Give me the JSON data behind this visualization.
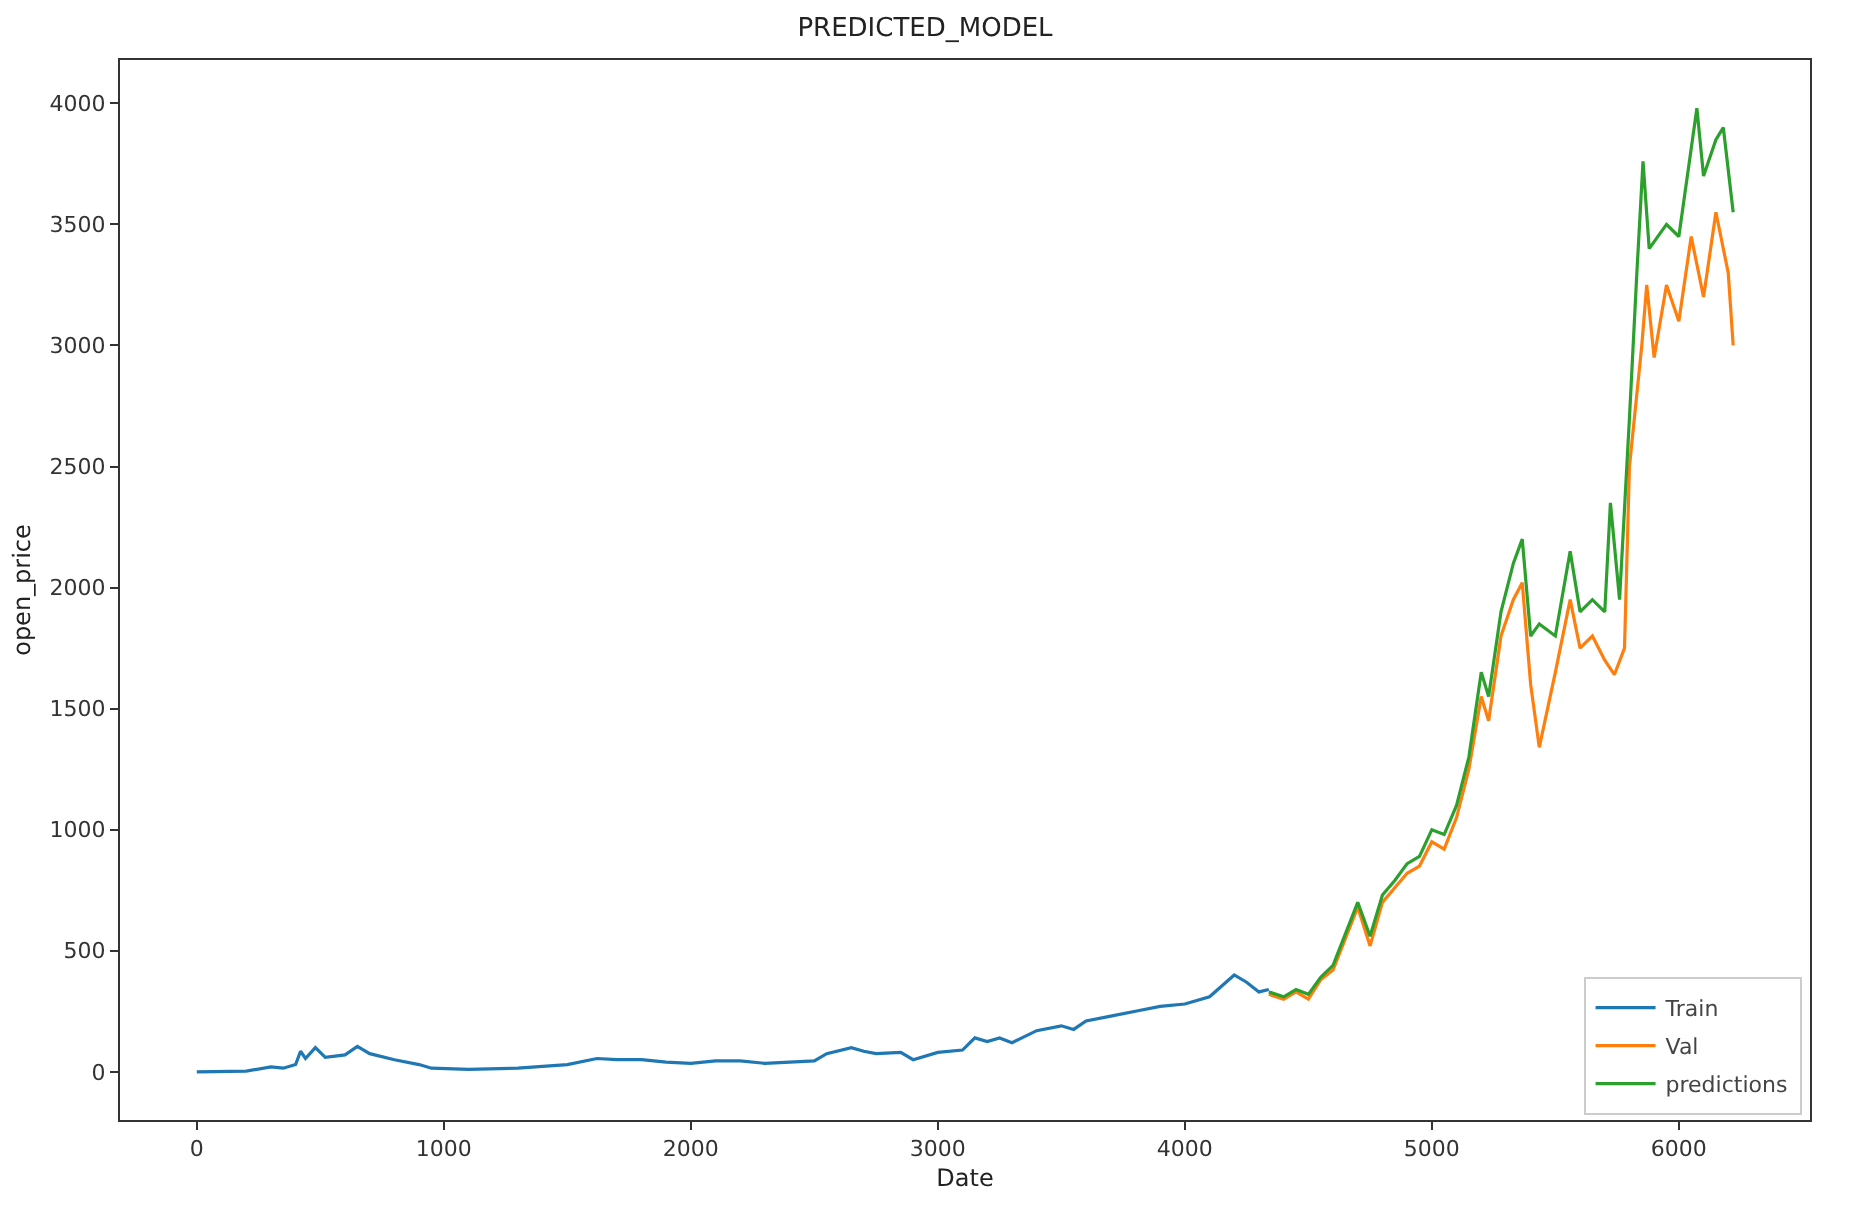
{
  "chart_data": {
    "type": "line",
    "title": "PREDICTED_MODEL",
    "xlabel": "Date",
    "ylabel": "open_price",
    "xlim": [
      -311,
      6531
    ],
    "xticks": [
      0,
      1000,
      2000,
      3000,
      4000,
      5000,
      6000
    ],
    "ylim": [
      -199,
      4179
    ],
    "yticks": [
      0,
      500,
      1000,
      1500,
      2000,
      2500,
      3000,
      3500,
      4000
    ],
    "grid": false,
    "legend": "bottom right",
    "marker": "none",
    "line_style": "solid",
    "series": [
      {
        "name": "Train",
        "color": "#1f77b4",
        "x": [
          0,
          200,
          300,
          350,
          400,
          420,
          440,
          480,
          520,
          600,
          650,
          700,
          800,
          900,
          950,
          1100,
          1300,
          1500,
          1620,
          1700,
          1800,
          1900,
          2000,
          2100,
          2200,
          2300,
          2400,
          2500,
          2550,
          2650,
          2700,
          2750,
          2850,
          2900,
          3000,
          3100,
          3150,
          3200,
          3250,
          3300,
          3400,
          3500,
          3550,
          3600,
          3700,
          3800,
          3900,
          4000,
          4100,
          4200,
          4250,
          4300,
          4340
        ],
        "values": [
          0,
          3,
          20,
          15,
          30,
          85,
          55,
          100,
          60,
          70,
          105,
          75,
          50,
          30,
          15,
          10,
          15,
          30,
          55,
          50,
          50,
          40,
          35,
          45,
          45,
          35,
          40,
          45,
          75,
          100,
          85,
          75,
          80,
          50,
          80,
          90,
          140,
          125,
          140,
          120,
          170,
          190,
          175,
          210,
          230,
          250,
          270,
          280,
          310,
          400,
          370,
          330,
          340
        ]
      },
      {
        "name": "Val",
        "color": "#ff7f0e",
        "x": [
          4340,
          4400,
          4450,
          4500,
          4550,
          4600,
          4650,
          4700,
          4750,
          4800,
          4850,
          4900,
          4950,
          5000,
          5050,
          5100,
          5150,
          5200,
          5230,
          5280,
          5330,
          5366,
          5400,
          5435,
          5500,
          5560,
          5600,
          5650,
          5700,
          5739,
          5780,
          5800,
          5850,
          5870,
          5900,
          5950,
          6000,
          6050,
          6100,
          6150,
          6200,
          6220
        ],
        "values": [
          320,
          300,
          330,
          300,
          380,
          420,
          550,
          680,
          520,
          700,
          760,
          820,
          850,
          950,
          920,
          1050,
          1250,
          1550,
          1450,
          1800,
          1950,
          2020,
          1600,
          1340,
          1650,
          1950,
          1750,
          1800,
          1700,
          1640,
          1750,
          2500,
          3000,
          3250,
          2950,
          3250,
          3100,
          3450,
          3200,
          3550,
          3300,
          3000
        ]
      },
      {
        "name": "predictions",
        "color": "#2ca02c",
        "x": [
          4340,
          4400,
          4450,
          4500,
          4550,
          4600,
          4650,
          4700,
          4750,
          4800,
          4850,
          4900,
          4950,
          5000,
          5050,
          5100,
          5150,
          5200,
          5230,
          5280,
          5330,
          5366,
          5400,
          5435,
          5500,
          5560,
          5600,
          5650,
          5700,
          5723,
          5760,
          5800,
          5830,
          5855,
          5880,
          5950,
          6000,
          6073,
          6100,
          6150,
          6180,
          6220
        ],
        "values": [
          330,
          310,
          340,
          320,
          390,
          440,
          570,
          700,
          560,
          730,
          790,
          860,
          890,
          1000,
          980,
          1100,
          1300,
          1650,
          1550,
          1900,
          2100,
          2200,
          1800,
          1850,
          1800,
          2150,
          1900,
          1950,
          1900,
          2350,
          1950,
          2700,
          3300,
          3760,
          3400,
          3500,
          3450,
          3980,
          3700,
          3850,
          3900,
          3550
        ]
      }
    ]
  }
}
